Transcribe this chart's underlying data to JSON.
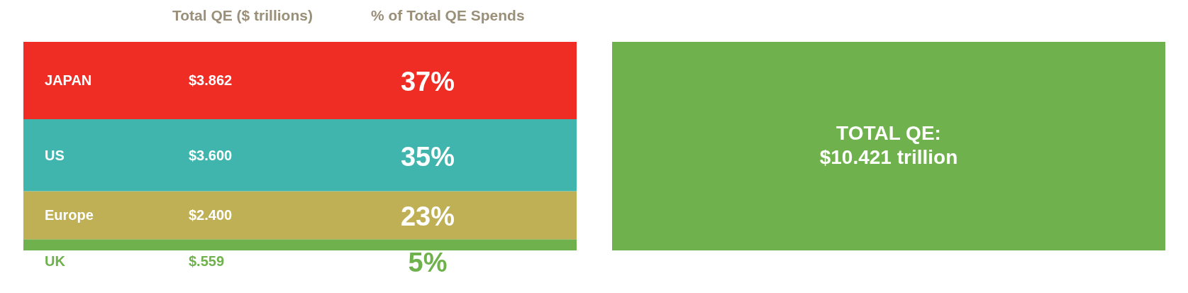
{
  "chart_data": {
    "type": "bar",
    "stacked": true,
    "categories": [
      null,
      null
    ],
    "series": [
      {
        "name": "UK",
        "color": "#6fb14c",
        "values": [
          0.559,
          null
        ],
        "value_labels": [
          "$.559",
          null
        ]
      },
      {
        "name": "Europe",
        "color": "#c0b055",
        "values": [
          2.4,
          null
        ],
        "value_labels": [
          "$2.400",
          null
        ]
      },
      {
        "name": "US",
        "color": "#3fb5ae",
        "values": [
          3.6,
          null
        ],
        "value_labels": [
          "$3.600",
          null
        ]
      },
      {
        "name": "JAPAN",
        "color": "#ef2d24",
        "values": [
          3.862,
          null
        ],
        "value_labels": [
          "$3.862",
          null
        ]
      },
      {
        "color": "#6fb14c",
        "values": [
          null,
          10.421
        ]
      }
    ],
    "annotations": [
      "Total QE ($ trillions)",
      "% of Total QE Spends",
      "5%",
      "23%",
      "35%",
      "37%",
      "TOTAL QE:\n$10.421 trillion"
    ]
  }
}
